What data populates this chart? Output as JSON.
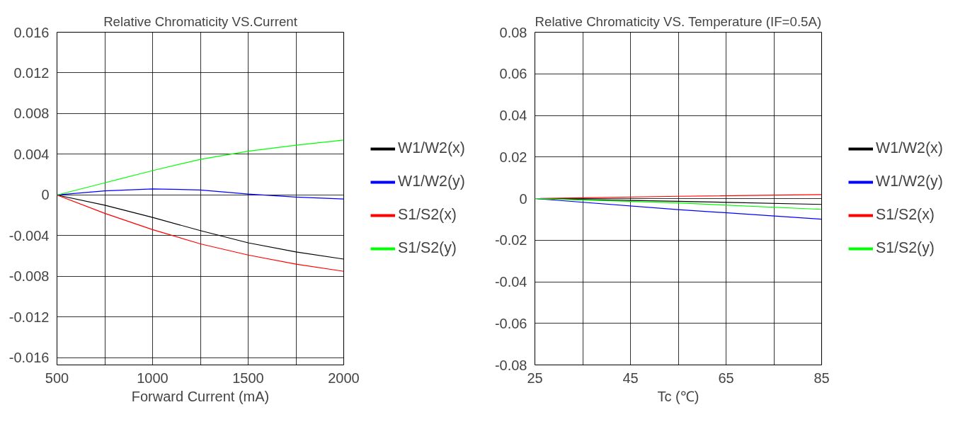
{
  "chart_data": [
    {
      "type": "line",
      "title": "Relative Chromaticity VS.Current",
      "xlabel": "Forward Current (mA)",
      "x": [
        500,
        750,
        1000,
        1250,
        1500,
        1750,
        2000
      ],
      "xlim": [
        500,
        2000
      ],
      "xticks": [
        500,
        {
          "value": 750,
          "label": null
        },
        1000,
        {
          "value": 1250,
          "label": null
        },
        1500,
        {
          "value": 1750,
          "label": null
        },
        2000
      ],
      "ylim": [
        -0.0167,
        0.016
      ],
      "yticks": [
        -0.016,
        -0.012,
        -0.008,
        -0.004,
        0,
        0.004,
        0.008,
        0.012,
        0.016
      ],
      "grid": true,
      "legend": "right",
      "series": [
        {
          "name": "W1/W2(x)",
          "color": "#000000",
          "values": [
            0,
            -0.001,
            -0.0022,
            -0.0035,
            -0.0047,
            -0.0056,
            -0.0063
          ]
        },
        {
          "name": "W1/W2(y)",
          "color": "#0000ff",
          "values": [
            0,
            0.0004,
            0.0006,
            0.0005,
            0.0001,
            -0.0002,
            -0.0004
          ]
        },
        {
          "name": "S1/S2(x)",
          "color": "#ff0000",
          "values": [
            0,
            -0.0018,
            -0.0034,
            -0.0048,
            -0.0059,
            -0.0068,
            -0.0075
          ]
        },
        {
          "name": "S1/S2(y)",
          "color": "#00ff00",
          "values": [
            0,
            0.0012,
            0.0024,
            0.0035,
            0.0043,
            0.0049,
            0.0054
          ]
        }
      ]
    },
    {
      "type": "line",
      "title": "Relative Chromaticity VS. Temperature (IF=0.5A)",
      "xlabel": "Tc (℃)",
      "x": [
        25,
        55,
        85
      ],
      "xlim": [
        25,
        85
      ],
      "xticks": [
        25,
        {
          "value": 35,
          "label": null
        },
        45,
        {
          "value": 55,
          "label": null
        },
        65,
        {
          "value": 75,
          "label": null
        },
        85
      ],
      "ylim": [
        -0.08,
        0.08
      ],
      "yticks": [
        -0.08,
        -0.06,
        -0.04,
        -0.02,
        0,
        0.02,
        0.04,
        0.06,
        0.08
      ],
      "grid": true,
      "legend": "right",
      "series": [
        {
          "name": "W1/W2(x)",
          "color": "#000000",
          "values": [
            0,
            -0.0013,
            -0.0028
          ]
        },
        {
          "name": "W1/W2(y)",
          "color": "#0000ff",
          "values": [
            0,
            -0.0053,
            -0.0099
          ]
        },
        {
          "name": "S1/S2(x)",
          "color": "#ff0000",
          "values": [
            0,
            0.0011,
            0.0019
          ]
        },
        {
          "name": "S1/S2(y)",
          "color": "#00ff00",
          "values": [
            0,
            -0.0021,
            -0.0052
          ]
        }
      ]
    }
  ]
}
